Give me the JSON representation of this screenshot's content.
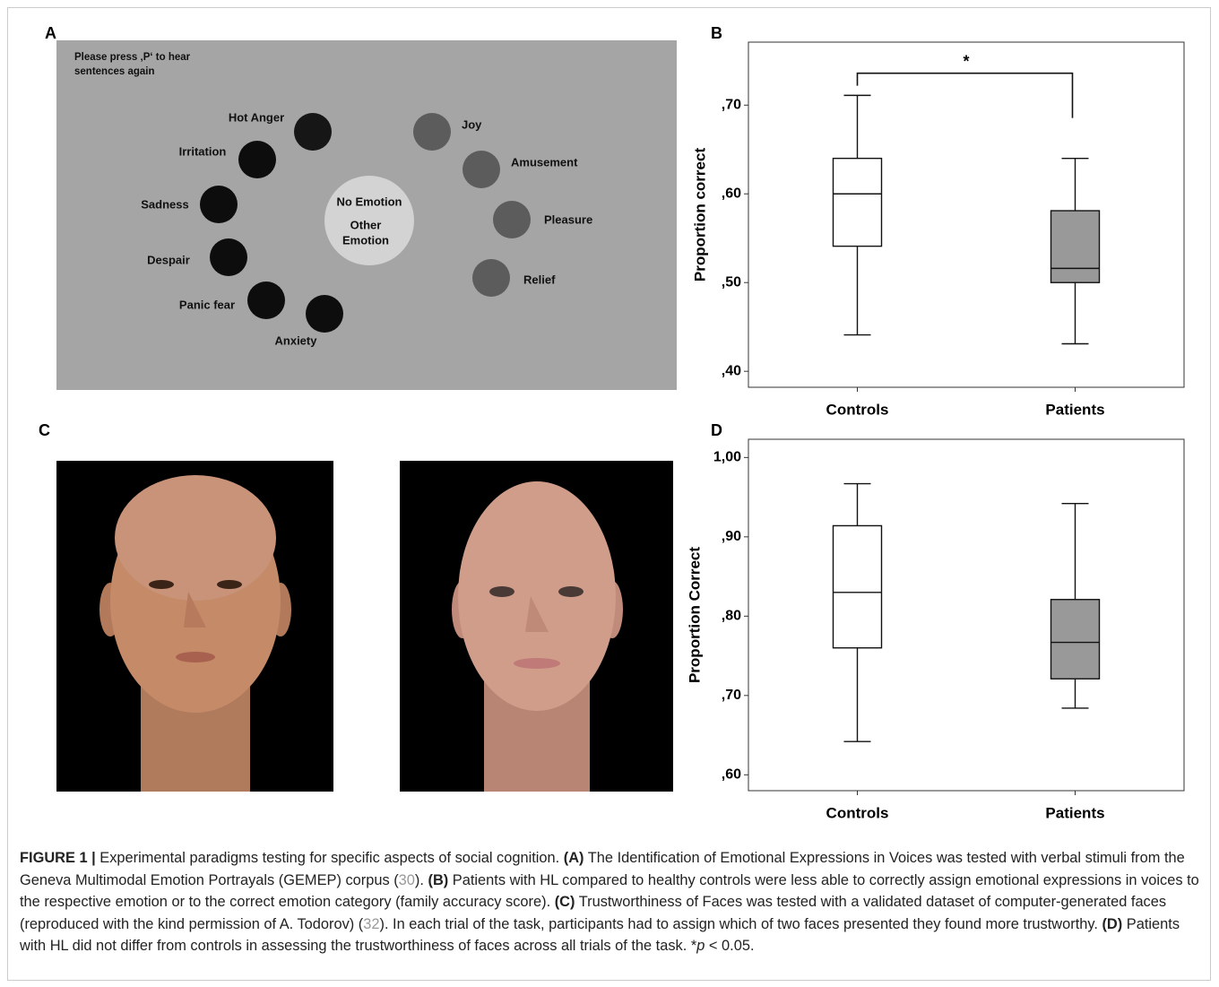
{
  "panel_labels": [
    "A",
    "B",
    "C",
    "D"
  ],
  "panel_a": {
    "instruction": [
      "Please press ‚P‘ to hear",
      "sentences again"
    ],
    "negative_emotions": [
      "Hot Anger",
      "Irritation",
      "Sadness",
      "Despair",
      "Panic fear",
      "Anxiety"
    ],
    "positive_emotions": [
      "Joy",
      "Amusement",
      "Pleasure",
      "Relief"
    ],
    "center": [
      "No Emotion",
      "Other",
      "Emotion"
    ]
  },
  "chart_data": [
    {
      "type": "box",
      "y_label": "Proportion correct",
      "categories": [
        "Controls",
        "Patients"
      ],
      "boxes": [
        {
          "min": 0.441,
          "q1": 0.541,
          "median": 0.6,
          "q3": 0.64,
          "max": 0.711,
          "color": "#ffffff"
        },
        {
          "min": 0.431,
          "q1": 0.5,
          "median": 0.516,
          "q3": 0.581,
          "max": 0.64,
          "color": "#999999"
        }
      ],
      "ylim": [
        0.382,
        0.771
      ],
      "yticks": [
        {
          "value": 0.4,
          "label": ",40"
        },
        {
          "value": 0.5,
          "label": ",50"
        },
        {
          "value": 0.6,
          "label": ",60"
        },
        {
          "value": 0.7,
          "label": ",70"
        }
      ],
      "annotation": {
        "text": "*",
        "value": 0.736
      }
    },
    {
      "type": "box",
      "y_label": "Proportion Correct",
      "categories": [
        "Controls",
        "Patients"
      ],
      "boxes": [
        {
          "min": 0.642,
          "q1": 0.76,
          "median": 0.83,
          "q3": 0.914,
          "max": 0.967,
          "color": "#ffffff"
        },
        {
          "min": 0.684,
          "q1": 0.721,
          "median": 0.767,
          "q3": 0.821,
          "max": 0.942,
          "color": "#999999"
        }
      ],
      "ylim": [
        0.58,
        1.023
      ],
      "yticks": [
        {
          "value": 0.6,
          "label": ",60"
        },
        {
          "value": 0.7,
          "label": ",70"
        },
        {
          "value": 0.8,
          "label": ",80"
        },
        {
          "value": 0.9,
          "label": ",90"
        },
        {
          "value": 1.0,
          "label": "1,00"
        }
      ]
    }
  ],
  "caption": [
    "FIGURE 1 |",
    " Experimental paradigms testing for specific aspects of social cognition. ",
    "(A)",
    " The Identification of Emotional Expressions in Voices was tested with verbal stimuli from the Geneva Multimodal Emotion Portrayals (GEMEP) corpus (",
    "30",
    "). ",
    "(B)",
    " Patients with HL compared to healthy controls were less able to correctly assign emotional expressions in voices to the respective emotion or to the correct emotion category (family accuracy score). ",
    "(C)",
    " Trustworthiness of Faces was tested with a validated dataset of computer-generated faces (reproduced with the kind permission of A. Todorov) (",
    "32",
    "). In each trial of the task, participants had to assign which of two faces presented they found more trustworthy. ",
    "(D)",
    " Patients with HL did not differ from controls in assessing the trustworthiness of faces across all trials of the task. ",
    "*",
    "p",
    " < 0.05."
  ]
}
